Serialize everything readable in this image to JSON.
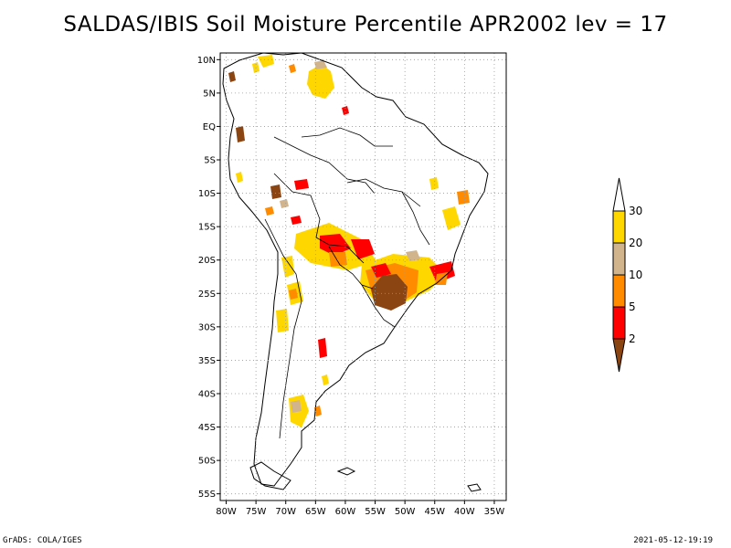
{
  "title": "SALDAS/IBIS Soil Moisture Percentile APR2002 lev = 17",
  "map": {
    "lat_labels": [
      "10N",
      "5N",
      "EQ",
      "5S",
      "10S",
      "15S",
      "20S",
      "25S",
      "30S",
      "35S",
      "40S",
      "45S",
      "50S",
      "55S"
    ],
    "lon_labels": [
      "80W",
      "75W",
      "70W",
      "65W",
      "60W",
      "55W",
      "50W",
      "45W",
      "40W",
      "35W"
    ],
    "lat_range": [
      11,
      -56
    ],
    "lon_range": [
      -81,
      -33
    ],
    "grid": "dotted"
  },
  "colorbar": {
    "labels": [
      "2",
      "5",
      "10",
      "20",
      "30"
    ],
    "colors": [
      "#8B4513",
      "#ff0000",
      "#ff8c00",
      "#d2b48c",
      "#ffd700"
    ]
  },
  "footer": {
    "left": "GrADS: COLA/IGES",
    "right": "2021-05-12-19:19"
  }
}
